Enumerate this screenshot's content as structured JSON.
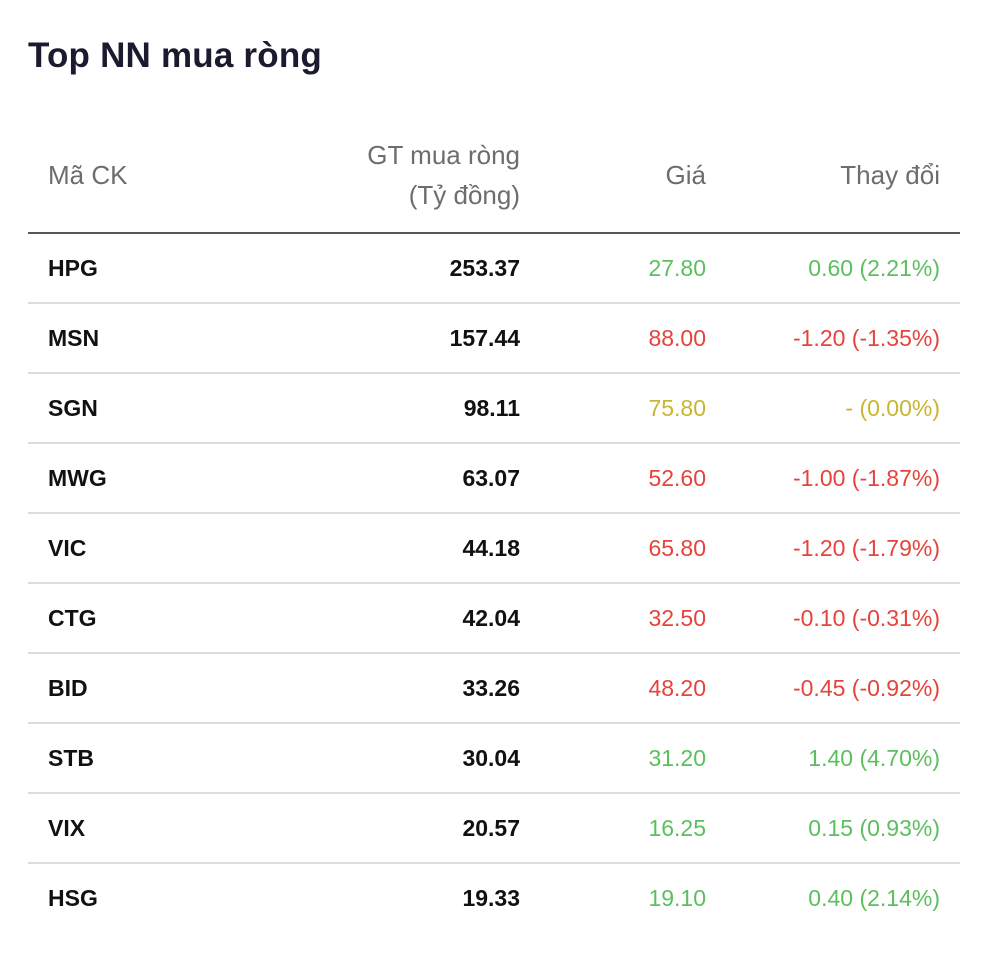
{
  "title": "Top NN mua ròng",
  "colors": {
    "up": "#5cbf5e",
    "down": "#e5433c",
    "ref": "#c9b532"
  },
  "table": {
    "headers": {
      "symbol": "Mã CK",
      "value_line1": "GT mua ròng",
      "value_line2": "(Tỷ đồng)",
      "price": "Giá",
      "change": "Thay đổi"
    },
    "rows": [
      {
        "symbol": "HPG",
        "value": "253.37",
        "price": "27.80",
        "change": "0.60 (2.21%)",
        "trend": "up"
      },
      {
        "symbol": "MSN",
        "value": "157.44",
        "price": "88.00",
        "change": "-1.20 (-1.35%)",
        "trend": "down"
      },
      {
        "symbol": "SGN",
        "value": "98.11",
        "price": "75.80",
        "change": "- (0.00%)",
        "trend": "ref"
      },
      {
        "symbol": "MWG",
        "value": "63.07",
        "price": "52.60",
        "change": "-1.00 (-1.87%)",
        "trend": "down"
      },
      {
        "symbol": "VIC",
        "value": "44.18",
        "price": "65.80",
        "change": "-1.20 (-1.79%)",
        "trend": "down"
      },
      {
        "symbol": "CTG",
        "value": "42.04",
        "price": "32.50",
        "change": "-0.10 (-0.31%)",
        "trend": "down"
      },
      {
        "symbol": "BID",
        "value": "33.26",
        "price": "48.20",
        "change": "-0.45 (-0.92%)",
        "trend": "down"
      },
      {
        "symbol": "STB",
        "value": "30.04",
        "price": "31.20",
        "change": "1.40 (4.70%)",
        "trend": "up"
      },
      {
        "symbol": "VIX",
        "value": "20.57",
        "price": "16.25",
        "change": "0.15 (0.93%)",
        "trend": "up"
      },
      {
        "symbol": "HSG",
        "value": "19.33",
        "price": "19.10",
        "change": "0.40 (2.14%)",
        "trend": "up"
      }
    ]
  }
}
